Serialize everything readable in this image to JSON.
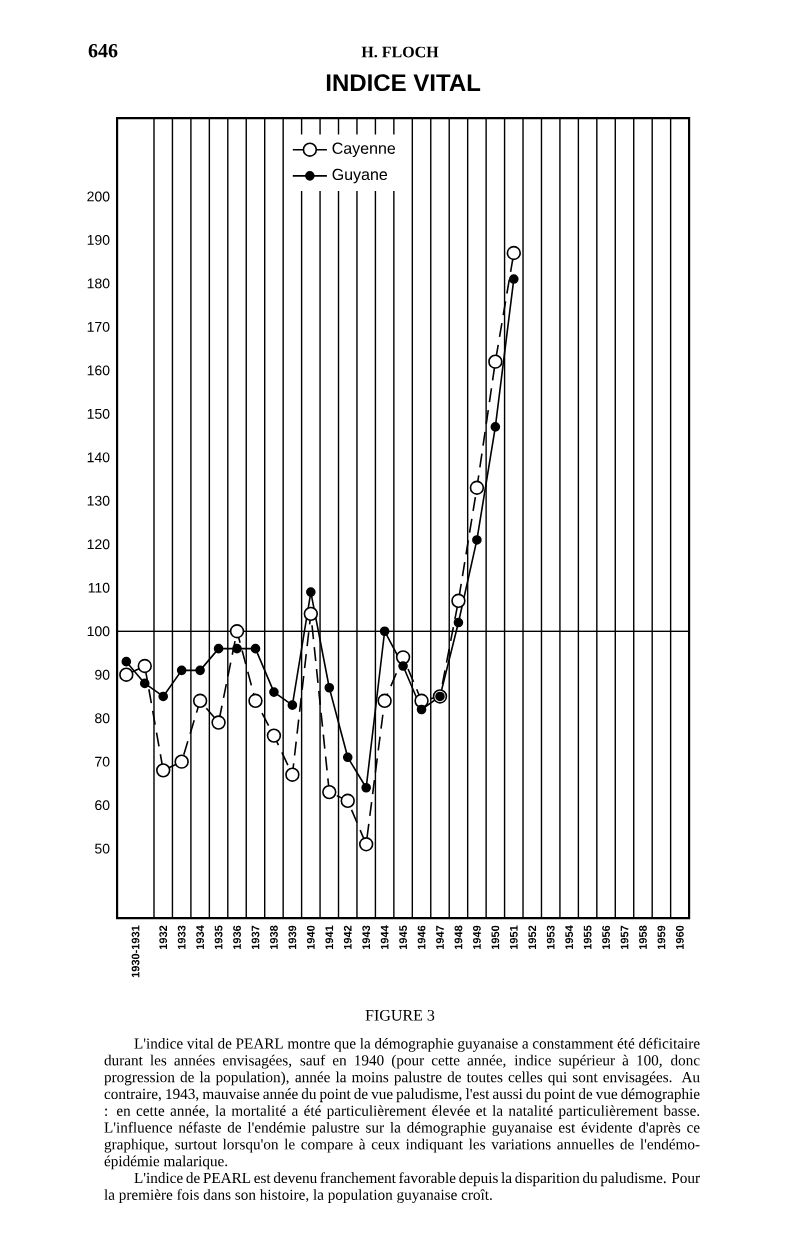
{
  "chart_data": {
    "type": "line",
    "title": "INDICE VITAL",
    "annotations": [
      "646",
      "H. FLOCH",
      "FIGURE 3",
      "L'indice vital de PEARL montre que la démographie guyanaise a constamment été déficitaire durant les années envisagées, sauf en 1940 (pour cette année, indice supérieur à 100, donc progression de la population), année la moins palustre de toutes celles qui sont envisagées. Au contraire, 1943, mauvaise année du point de vue paludisme, l'est aussi du point de vue démographie : en cette année, la mortalité a été particulièrement élevée et la natalité particulièrement basse. L'influence néfaste de l'endémie palustre sur la démographie guyanaise est évidente d'après ce graphique, surtout lorsqu'on le compare à ceux indiquant les variations annuelles de l'endémo-épidémie malarique.",
      "L'indice de PEARL est devenu franchement favorable depuis la disparition du paludisme. Pour la première fois dans son histoire, la population guyanaise croît."
    ],
    "x": [
      1930,
      1931,
      1932,
      1933,
      1934,
      1935,
      1936,
      1937,
      1938,
      1939,
      1940,
      1941,
      1942,
      1943,
      1944,
      1945,
      1946,
      1947,
      1948,
      1949,
      1950,
      1951
    ],
    "series": [
      {
        "name": "Cayenne",
        "color": "#000000",
        "line_style": "dashed",
        "values": [
          90,
          92,
          68,
          70,
          84,
          79,
          100,
          84,
          76,
          67,
          104,
          63,
          61,
          51,
          84,
          94,
          84,
          85,
          107,
          133,
          162,
          187
        ]
      },
      {
        "name": "Guyane",
        "color": "#000000",
        "line_style": "solid",
        "values": [
          93,
          88,
          85,
          91,
          91,
          96,
          96,
          96,
          86,
          83,
          109,
          87,
          71,
          64,
          100,
          92,
          82,
          85,
          102,
          121,
          147,
          181
        ]
      }
    ],
    "xlim": [
      1929.5,
      1960.5
    ],
    "xticks": [
      {
        "value": 1930.5,
        "label": "1930-1931"
      },
      1932,
      1933,
      1934,
      1935,
      1936,
      1937,
      1938,
      1939,
      1940,
      1941,
      1942,
      1943,
      1944,
      1945,
      1946,
      1947,
      1948,
      1949,
      1950,
      1951,
      1952,
      1953,
      1954,
      1955,
      1956,
      1957,
      1958,
      1959,
      1960
    ],
    "ylim": [
      34,
      218
    ],
    "yticks": [
      50,
      60,
      70,
      80,
      90,
      100,
      110,
      120,
      130,
      140,
      150,
      160,
      170,
      180,
      190,
      200
    ],
    "ref_lines": [
      {
        "axis": "y",
        "value": 100
      }
    ],
    "grid": "x",
    "legend": "top",
    "marker": "circle"
  }
}
